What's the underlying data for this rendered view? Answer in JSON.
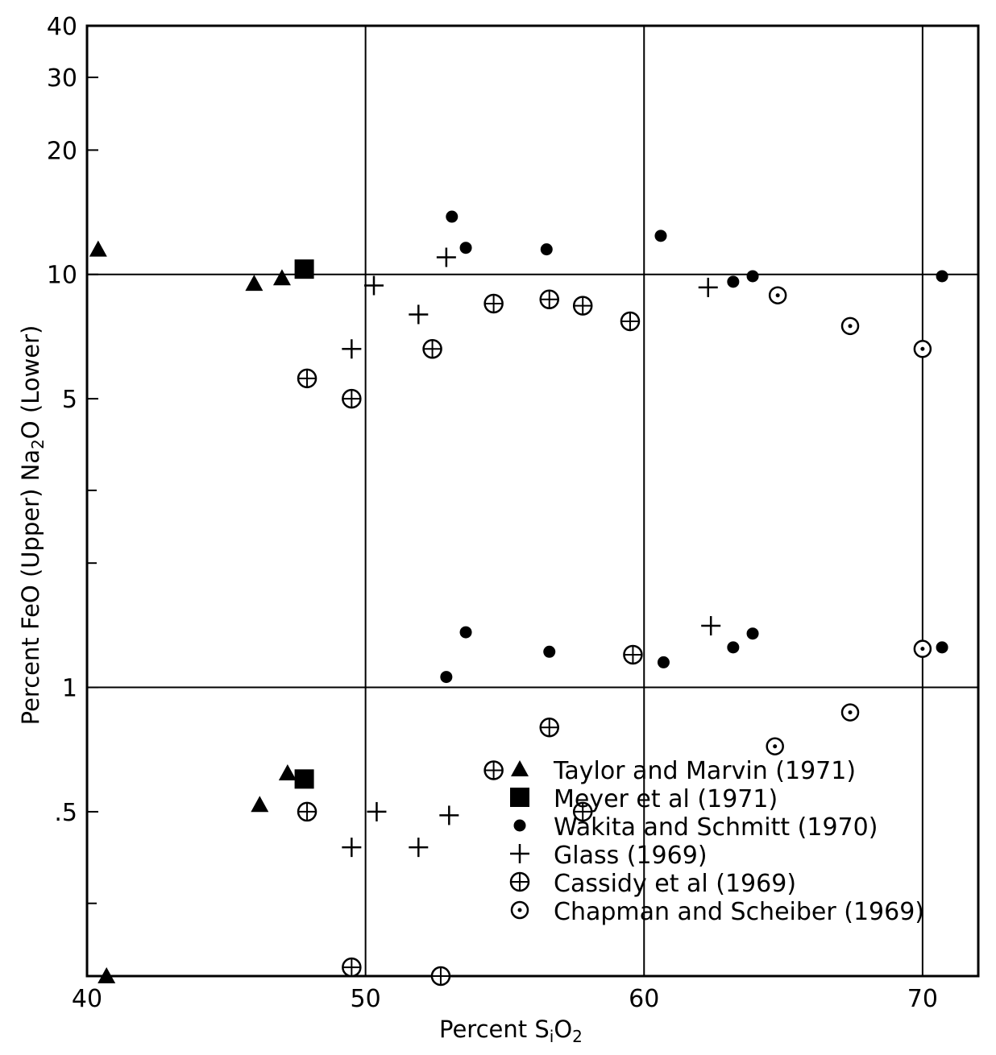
{
  "chart_data": {
    "type": "scatter",
    "title": "",
    "xlabel": "Percent SiO2",
    "xlabel_parts": [
      "Percent  S",
      "i",
      "O",
      "2"
    ],
    "ylabel": "Percent  FeO (Upper) Na2O (Lower)",
    "ylabel_parts": [
      "Percent  FeO (Upper) Na",
      "2",
      "O (Lower)"
    ],
    "xlim": [
      40,
      72
    ],
    "ylim": [
      0.2,
      40
    ],
    "yscale": "log",
    "grid": "major lines at x = 50, 60, 70 and y = 1, 10",
    "x_ticks": [
      {
        "value": 40,
        "label": "40"
      },
      {
        "value": 50,
        "label": "50"
      },
      {
        "value": 60,
        "label": "60"
      },
      {
        "value": 70,
        "label": "70"
      }
    ],
    "y_ticks": [
      {
        "value": 40,
        "label": "40"
      },
      {
        "value": 30,
        "label": "30"
      },
      {
        "value": 20,
        "label": "20"
      },
      {
        "value": 10,
        "label": "10"
      },
      {
        "value": 5,
        "label": "5"
      },
      {
        "value": 1,
        "label": "1"
      },
      {
        "value": 0.5,
        "label": ".5"
      }
    ],
    "y_minor_ticks": [
      2,
      3,
      0.3
    ],
    "legend_position": "bottom-right",
    "series": [
      {
        "name": "Taylor and Marvin (1971)",
        "marker": "triangle",
        "points": [
          [
            40.4,
            11.5
          ],
          [
            46.0,
            9.5
          ],
          [
            47.0,
            9.8
          ],
          [
            40.7,
            0.2
          ],
          [
            46.2,
            0.52
          ],
          [
            47.2,
            0.62
          ]
        ]
      },
      {
        "name": "Meyer et al (1971)",
        "marker": "square",
        "points": [
          [
            47.8,
            10.3
          ],
          [
            47.8,
            0.6
          ]
        ]
      },
      {
        "name": "Wakita and Schmitt (1970)",
        "marker": "dot",
        "points": [
          [
            53.1,
            13.8
          ],
          [
            53.6,
            11.6
          ],
          [
            56.5,
            11.5
          ],
          [
            60.6,
            12.4
          ],
          [
            63.2,
            9.6
          ],
          [
            63.9,
            9.9
          ],
          [
            70.7,
            9.9
          ],
          [
            53.6,
            1.36
          ],
          [
            56.6,
            1.22
          ],
          [
            60.7,
            1.15
          ],
          [
            63.2,
            1.25
          ],
          [
            63.9,
            1.35
          ],
          [
            52.9,
            1.06
          ],
          [
            70.7,
            1.25
          ]
        ]
      },
      {
        "name": "Glass (1969)",
        "marker": "plus",
        "points": [
          [
            52.9,
            11.0
          ],
          [
            50.3,
            9.4
          ],
          [
            51.9,
            8.0
          ],
          [
            49.5,
            6.6
          ],
          [
            62.3,
            9.3
          ],
          [
            62.4,
            1.41
          ],
          [
            50.4,
            0.5
          ],
          [
            53.0,
            0.49
          ],
          [
            49.5,
            0.41
          ],
          [
            51.9,
            0.41
          ]
        ]
      },
      {
        "name": "Cassidy et al (1969)",
        "marker": "circle-plus",
        "points": [
          [
            47.9,
            5.6
          ],
          [
            49.5,
            5.0
          ],
          [
            52.4,
            6.6
          ],
          [
            54.6,
            8.5
          ],
          [
            56.6,
            8.7
          ],
          [
            57.8,
            8.4
          ],
          [
            59.5,
            7.7
          ],
          [
            59.6,
            1.2
          ],
          [
            56.6,
            0.8
          ],
          [
            54.6,
            0.63
          ],
          [
            47.9,
            0.5
          ],
          [
            57.8,
            0.5
          ],
          [
            49.5,
            0.21
          ],
          [
            52.7,
            0.2
          ]
        ]
      },
      {
        "name": "Chapman and Scheiber (1969)",
        "marker": "circle-dot",
        "points": [
          [
            64.8,
            8.9
          ],
          [
            67.4,
            7.5
          ],
          [
            70.0,
            6.6
          ],
          [
            70.0,
            1.24
          ],
          [
            67.4,
            0.87
          ],
          [
            64.7,
            0.72
          ]
        ]
      }
    ]
  }
}
